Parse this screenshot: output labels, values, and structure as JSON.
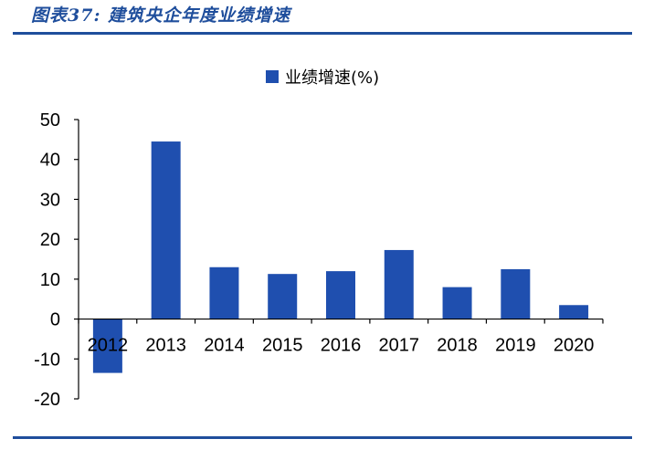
{
  "figure": {
    "title": "图表37: 建筑央企年度业绩增速"
  },
  "colors": {
    "accent": "#1f4e9c",
    "bar": "#1f4faf"
  },
  "chart_data": {
    "type": "bar",
    "title": "",
    "xlabel": "",
    "ylabel": "",
    "categories": [
      "2012",
      "2013",
      "2014",
      "2015",
      "2016",
      "2017",
      "2018",
      "2019",
      "2020"
    ],
    "series": [
      {
        "name": "业绩增速(%)",
        "values": [
          -13.5,
          44.5,
          13.0,
          11.3,
          12.0,
          17.3,
          8.0,
          12.5,
          3.5
        ]
      }
    ],
    "ylim": [
      -20,
      50
    ],
    "yticks": [
      "-20",
      "-10",
      "0",
      "10",
      "20",
      "30",
      "40",
      "50"
    ],
    "grid": false,
    "legend_position": "top-center"
  }
}
